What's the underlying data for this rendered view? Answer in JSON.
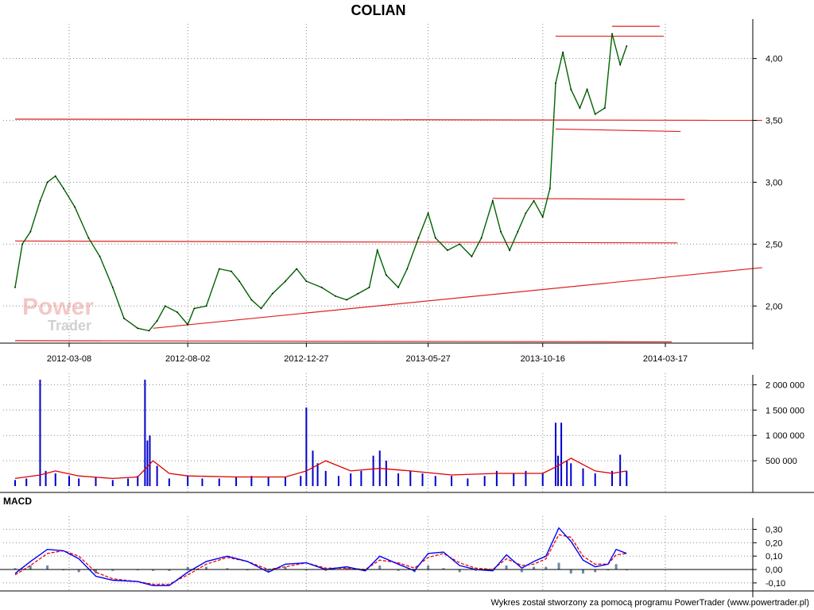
{
  "chart_data": {
    "type": "line",
    "title": "COLIAN",
    "dates": [
      "2012-03-08",
      "2012-08-02",
      "2012-12-27",
      "2013-05-27",
      "2013-10-16",
      "2014-03-17"
    ],
    "date_tick_labels": [
      "2012-03-08",
      "2012-08-02",
      "2012-12-27",
      "2013-05-27",
      "2013-10-16",
      "2014-03-17"
    ],
    "price_panel": {
      "ylim": [
        1.7,
        4.28
      ],
      "y_ticks": [
        2.0,
        2.5,
        3.0,
        3.5,
        4.0
      ],
      "y_tick_labels": [
        "2,00",
        "2,50",
        "3,00",
        "3,50",
        "4,00"
      ],
      "series": [
        {
          "type": "line",
          "x": [
            "2012-01-01",
            "2012-01-10",
            "2012-01-20",
            "2012-02-01",
            "2012-02-10",
            "2012-02-20",
            "2012-03-01",
            "2012-03-15",
            "2012-04-01",
            "2012-04-15",
            "2012-05-01",
            "2012-05-15",
            "2012-06-01",
            "2012-06-15",
            "2012-06-25",
            "2012-07-05",
            "2012-07-20",
            "2012-08-02",
            "2012-08-10",
            "2012-08-25",
            "2012-09-10",
            "2012-09-25",
            "2012-10-05",
            "2012-10-20",
            "2012-11-01",
            "2012-11-15",
            "2012-12-01",
            "2012-12-15",
            "2012-12-27",
            "2013-01-15",
            "2013-02-01",
            "2013-02-15",
            "2013-03-01",
            "2013-03-15",
            "2013-03-25",
            "2013-04-05",
            "2013-04-20",
            "2013-05-01",
            "2013-05-15",
            "2013-05-27",
            "2013-06-05",
            "2013-06-20",
            "2013-07-05",
            "2013-07-20",
            "2013-08-01",
            "2013-08-15",
            "2013-08-25",
            "2013-09-05",
            "2013-09-15",
            "2013-09-25",
            "2013-10-05",
            "2013-10-16",
            "2013-10-25",
            "2013-11-01",
            "2013-11-10",
            "2013-11-20",
            "2013-12-01",
            "2013-12-10",
            "2013-12-20",
            "2014-01-01",
            "2014-01-10",
            "2014-01-20",
            "2014-01-28"
          ],
          "y": [
            2.15,
            2.5,
            2.6,
            2.85,
            3.0,
            3.05,
            2.95,
            2.8,
            2.55,
            2.4,
            2.15,
            1.9,
            1.82,
            1.8,
            1.88,
            2.0,
            1.95,
            1.85,
            1.98,
            2.0,
            2.3,
            2.28,
            2.2,
            2.05,
            1.98,
            2.1,
            2.2,
            2.3,
            2.2,
            2.15,
            2.08,
            2.05,
            2.1,
            2.15,
            2.45,
            2.25,
            2.15,
            2.3,
            2.55,
            2.75,
            2.55,
            2.45,
            2.5,
            2.4,
            2.55,
            2.85,
            2.6,
            2.45,
            2.6,
            2.75,
            2.85,
            2.72,
            2.95,
            3.8,
            4.05,
            3.75,
            3.6,
            3.75,
            3.55,
            3.6,
            4.2,
            3.95,
            4.1
          ]
        }
      ]
    },
    "volume_panel": {
      "ylim": [
        0,
        2100000
      ],
      "y_ticks": [
        500000,
        1000000,
        1500000,
        2000000
      ],
      "y_tick_labels": [
        "500 000",
        "1 000 000",
        "1 500 000",
        "2 000 000"
      ],
      "series": [
        {
          "type": "bar",
          "x": [
            "2012-01-01",
            "2012-01-15",
            "2012-02-01",
            "2012-02-08",
            "2012-02-20",
            "2012-03-08",
            "2012-03-20",
            "2012-04-10",
            "2012-05-01",
            "2012-05-20",
            "2012-06-01",
            "2012-06-10",
            "2012-06-13",
            "2012-06-16",
            "2012-06-25",
            "2012-07-10",
            "2012-08-02",
            "2012-08-20",
            "2012-09-10",
            "2012-10-01",
            "2012-10-20",
            "2012-11-10",
            "2012-12-01",
            "2012-12-20",
            "2012-12-27",
            "2013-01-04",
            "2013-01-10",
            "2013-01-20",
            "2013-02-05",
            "2013-02-20",
            "2013-03-05",
            "2013-03-20",
            "2013-03-28",
            "2013-04-05",
            "2013-04-20",
            "2013-05-05",
            "2013-05-20",
            "2013-06-05",
            "2013-06-25",
            "2013-07-15",
            "2013-08-05",
            "2013-08-20",
            "2013-09-10",
            "2013-09-25",
            "2013-10-16",
            "2013-11-01",
            "2013-11-04",
            "2013-11-08",
            "2013-11-15",
            "2013-11-20",
            "2013-12-05",
            "2013-12-20",
            "2014-01-10",
            "2014-01-20",
            "2014-01-28"
          ],
          "y": [
            120000,
            150000,
            2100000,
            300000,
            250000,
            200000,
            150000,
            180000,
            120000,
            150000,
            200000,
            2100000,
            900000,
            1000000,
            400000,
            150000,
            200000,
            150000,
            150000,
            180000,
            200000,
            180000,
            180000,
            200000,
            1550000,
            700000,
            450000,
            300000,
            200000,
            250000,
            300000,
            600000,
            700000,
            500000,
            250000,
            300000,
            250000,
            200000,
            200000,
            150000,
            200000,
            300000,
            250000,
            300000,
            250000,
            1250000,
            600000,
            1250000,
            500000,
            450000,
            350000,
            250000,
            300000,
            620000,
            300000
          ]
        },
        {
          "type": "line",
          "x": [
            "2012-01-01",
            "2012-02-01",
            "2012-02-20",
            "2012-03-20",
            "2012-05-01",
            "2012-06-01",
            "2012-06-20",
            "2012-07-10",
            "2012-08-02",
            "2012-10-01",
            "2012-12-01",
            "2012-12-27",
            "2013-01-20",
            "2013-02-20",
            "2013-03-28",
            "2013-05-05",
            "2013-06-25",
            "2013-08-20",
            "2013-10-16",
            "2013-11-04",
            "2013-11-20",
            "2013-12-20",
            "2014-01-10",
            "2014-01-28"
          ],
          "y": [
            150000,
            220000,
            300000,
            200000,
            150000,
            180000,
            500000,
            250000,
            200000,
            180000,
            180000,
            300000,
            500000,
            300000,
            350000,
            300000,
            220000,
            250000,
            250000,
            400000,
            550000,
            300000,
            250000,
            300000
          ]
        }
      ]
    },
    "macd_panel": {
      "title": "MACD",
      "ylim": [
        -0.16,
        0.35
      ],
      "y_ticks": [
        -0.1,
        0.0,
        0.1,
        0.2,
        0.3
      ],
      "y_tick_labels": [
        "-0,10",
        "0,00",
        "0,10",
        "0,20",
        "0,30"
      ],
      "series": [
        {
          "type": "line",
          "x": [
            "2012-01-01",
            "2012-01-20",
            "2012-02-10",
            "2012-03-01",
            "2012-03-20",
            "2012-04-10",
            "2012-05-01",
            "2012-06-01",
            "2012-06-20",
            "2012-07-10",
            "2012-08-02",
            "2012-08-25",
            "2012-09-20",
            "2012-10-15",
            "2012-11-10",
            "2012-12-01",
            "2012-12-27",
            "2013-01-20",
            "2013-02-15",
            "2013-03-10",
            "2013-03-28",
            "2013-04-20",
            "2013-05-10",
            "2013-05-27",
            "2013-06-15",
            "2013-07-05",
            "2013-07-25",
            "2013-08-15",
            "2013-09-01",
            "2013-09-20",
            "2013-10-05",
            "2013-10-20",
            "2013-11-05",
            "2013-11-20",
            "2013-12-05",
            "2013-12-20",
            "2014-01-05",
            "2014-01-15",
            "2014-01-28"
          ],
          "y": [
            -0.03,
            0.06,
            0.15,
            0.14,
            0.08,
            -0.05,
            -0.08,
            -0.09,
            -0.12,
            -0.12,
            -0.02,
            0.06,
            0.1,
            0.06,
            -0.02,
            0.04,
            0.05,
            0.0,
            0.02,
            -0.01,
            0.1,
            0.04,
            -0.01,
            0.12,
            0.13,
            0.03,
            0.0,
            -0.01,
            0.11,
            0.01,
            0.06,
            0.1,
            0.31,
            0.21,
            0.07,
            0.02,
            0.04,
            0.15,
            0.12
          ]
        },
        {
          "type": "line",
          "x": [
            "2012-01-01",
            "2012-01-20",
            "2012-02-10",
            "2012-03-01",
            "2012-03-20",
            "2012-04-10",
            "2012-05-01",
            "2012-06-01",
            "2012-06-20",
            "2012-07-10",
            "2012-08-02",
            "2012-08-25",
            "2012-09-20",
            "2012-10-15",
            "2012-11-10",
            "2012-12-01",
            "2012-12-27",
            "2013-01-20",
            "2013-02-15",
            "2013-03-10",
            "2013-03-28",
            "2013-04-20",
            "2013-05-10",
            "2013-05-27",
            "2013-06-15",
            "2013-07-05",
            "2013-07-25",
            "2013-08-15",
            "2013-09-01",
            "2013-09-20",
            "2013-10-05",
            "2013-10-20",
            "2013-11-05",
            "2013-11-20",
            "2013-12-05",
            "2013-12-20",
            "2014-01-05",
            "2014-01-15",
            "2014-01-28"
          ],
          "y": [
            -0.04,
            0.03,
            0.12,
            0.14,
            0.1,
            -0.02,
            -0.07,
            -0.09,
            -0.11,
            -0.11,
            -0.04,
            0.04,
            0.09,
            0.06,
            0.0,
            0.02,
            0.05,
            0.01,
            0.01,
            0.0,
            0.07,
            0.05,
            0.01,
            0.09,
            0.12,
            0.05,
            0.01,
            0.0,
            0.08,
            0.03,
            0.04,
            0.08,
            0.26,
            0.24,
            0.1,
            0.04,
            0.04,
            0.11,
            0.12
          ]
        },
        {
          "type": "bar",
          "x": [
            "2012-01-01",
            "2012-01-20",
            "2012-02-10",
            "2012-03-01",
            "2012-03-20",
            "2012-04-10",
            "2012-05-01",
            "2012-06-01",
            "2012-06-20",
            "2012-07-10",
            "2012-08-02",
            "2012-08-25",
            "2012-09-20",
            "2012-10-15",
            "2012-11-10",
            "2012-12-01",
            "2012-12-27",
            "2013-01-20",
            "2013-02-15",
            "2013-03-10",
            "2013-03-28",
            "2013-04-20",
            "2013-05-10",
            "2013-05-27",
            "2013-06-15",
            "2013-07-05",
            "2013-07-25",
            "2013-08-15",
            "2013-09-01",
            "2013-09-20",
            "2013-10-05",
            "2013-10-20",
            "2013-11-05",
            "2013-11-20",
            "2013-12-05",
            "2013-12-20",
            "2014-01-05",
            "2014-01-15",
            "2014-01-28"
          ],
          "y": [
            0.01,
            0.03,
            0.03,
            0.0,
            -0.02,
            -0.03,
            -0.01,
            0.0,
            -0.01,
            -0.01,
            0.02,
            0.02,
            0.01,
            0.0,
            -0.02,
            0.02,
            0.0,
            -0.01,
            0.01,
            -0.01,
            0.03,
            -0.01,
            -0.02,
            0.03,
            0.01,
            -0.02,
            -0.01,
            -0.01,
            0.03,
            -0.02,
            0.02,
            0.02,
            0.05,
            -0.03,
            -0.03,
            -0.02,
            0.0,
            0.04,
            0.0
          ]
        }
      ]
    },
    "trend_lines": [
      {
        "x": [
          "2012-01-01",
          "2014-07-15"
        ],
        "y": [
          3.51,
          3.5
        ]
      },
      {
        "x": [
          "2012-01-01",
          "2014-04-01"
        ],
        "y": [
          2.525,
          2.51
        ]
      },
      {
        "x": [
          "2012-01-01",
          "2014-03-25"
        ],
        "y": [
          1.72,
          1.71
        ]
      },
      {
        "x": [
          "2012-06-20",
          "2014-07-15"
        ],
        "y": [
          1.82,
          2.31
        ]
      },
      {
        "x": [
          "2013-08-15",
          "2014-04-10"
        ],
        "y": [
          2.87,
          2.86
        ]
      },
      {
        "x": [
          "2013-11-01",
          "2014-04-05"
        ],
        "y": [
          3.43,
          3.41
        ]
      },
      {
        "x": [
          "2013-11-01",
          "2014-03-15"
        ],
        "y": [
          4.18,
          4.18
        ]
      },
      {
        "x": [
          "2014-01-10",
          "2014-03-10"
        ],
        "y": [
          4.26,
          4.26
        ]
      }
    ],
    "watermark": {
      "line1": "Power",
      "line2": "Trader"
    },
    "footer": "Wykres został stworzony za pomocą programu PowerTrader (www.powertrader.pl)"
  },
  "colors": {
    "price": "#006400",
    "volume_bar": "#0000cc",
    "volume_avg": "#dd0000",
    "macd": "#0000ff",
    "signal": "#ee0000",
    "histogram": "#6a8aa8",
    "trend": "#e02020",
    "grid": "#8a8a8a"
  }
}
